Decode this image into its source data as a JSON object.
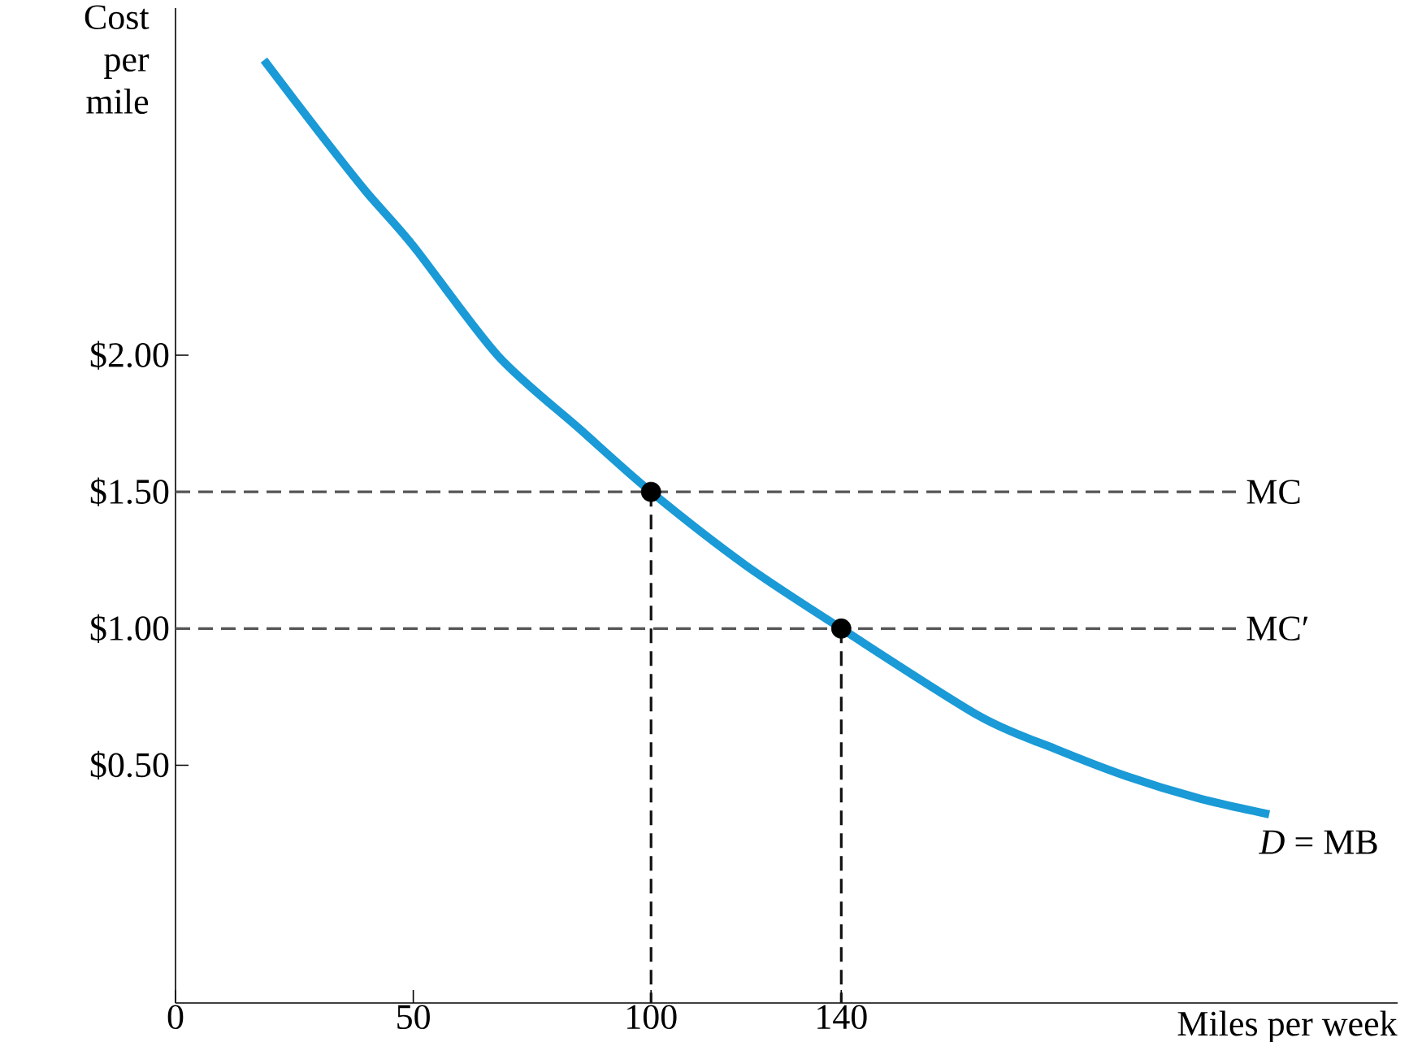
{
  "chart_data": {
    "type": "line",
    "xlabel": "Miles per week",
    "ylabel": "Cost per mile",
    "xlim": [
      0,
      257
    ],
    "ylim": [
      -0.37,
      3.27
    ],
    "xticks": [
      0,
      50,
      100,
      140
    ],
    "yticks": [
      {
        "value": 0.5,
        "label": "$0.50"
      },
      {
        "value": 1.0,
        "label": "$1.00"
      },
      {
        "value": 1.5,
        "label": "$1.50"
      },
      {
        "value": 2.0,
        "label": "$2.00"
      }
    ],
    "grid": false,
    "series": [
      {
        "name": "*D* = MB",
        "color": "#1a9ad6",
        "line_style": "solid",
        "marker": "none",
        "x": [
          18.6,
          30,
          40,
          50,
          67.7,
          85,
          100,
          120,
          140,
          169,
          185,
          200,
          215,
          230
        ],
        "values": [
          3.08,
          2.82,
          2.6,
          2.4,
          2.0,
          1.73,
          1.5,
          1.23,
          1.0,
          0.68,
          0.56,
          0.46,
          0.38,
          0.32
        ]
      },
      {
        "name": "MC",
        "color": "#555555",
        "line_style": "dashed",
        "marker": "none",
        "x": [
          0,
          223
        ],
        "values": [
          1.5,
          1.5
        ]
      },
      {
        "name": "MC′",
        "color": "#555555",
        "line_style": "dashed",
        "marker": "none",
        "x": [
          0,
          223
        ],
        "values": [
          1.0,
          1.0
        ]
      },
      {
        "color": "#111111",
        "line_style": "dashed",
        "marker": "none",
        "x": [
          100,
          100
        ],
        "values": [
          1.5,
          -0.37
        ]
      },
      {
        "color": "#111111",
        "line_style": "dashed",
        "marker": "none",
        "x": [
          140,
          140
        ],
        "values": [
          1.0,
          -0.37
        ]
      },
      {
        "type": "scatter",
        "color": "#000000",
        "marker": "circle",
        "x": [
          100,
          140
        ],
        "values": [
          1.5,
          1.0
        ]
      }
    ]
  }
}
